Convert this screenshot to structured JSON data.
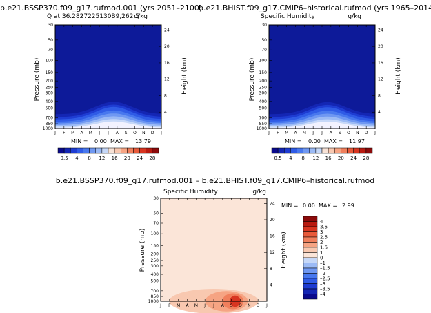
{
  "page_title": "b.e21.BSSP370.f09_g17.rufmod.001 – b.e21.BHIST.f09_g17.CMIP6–historical.rufmod",
  "months": [
    "J",
    "F",
    "M",
    "A",
    "M",
    "J",
    "J",
    "A",
    "S",
    "O",
    "N",
    "D",
    "J"
  ],
  "pressure_ticks": [
    "30",
    "50",
    "70",
    "100",
    "150",
    "200",
    "250",
    "300",
    "400",
    "500",
    "700",
    "850",
    "1000"
  ],
  "panels": [
    {
      "id": "ssp370",
      "top_title": "b.e21.BSSP370.f09_g17.rufmod.001  (yrs 2051–2100)",
      "left_label": "Q  at  36.2827225130B9,262.5",
      "units": "g/kg",
      "min_label": "MIN =",
      "min": "0.00",
      "max_label": "MAX =",
      "max": "13.79",
      "ylabel": "Pressure  (mb)",
      "ylabel_right": "Height  (km)",
      "height_ticks": [
        "24",
        "20",
        "16",
        "12",
        "8",
        "4"
      ]
    },
    {
      "id": "hist",
      "top_title": "b.e21.BHIST.f09_g17.CMIP6–historical.rufmod  (yrs 1965–2014)",
      "left_label": "Specific Humidity",
      "units": "g/kg",
      "min_label": "MIN =",
      "min": "0.00",
      "max_label": "MAX =",
      "max": "11.97",
      "ylabel": "Pressure  (mb)",
      "ylabel_right": "Height  (km)",
      "height_ticks": [
        "24",
        "20",
        "16",
        "12",
        "8",
        "4"
      ]
    },
    {
      "id": "diff",
      "top_title": "b.e21.BSSP370.f09_g17.rufmod.001  –  b.e21.BHIST.f09_g17.CMIP6–historical.rufmod",
      "left_label": "Specific Humidity",
      "units": "g/kg",
      "min_label": "MIN =",
      "min": "0.00",
      "max_label": "MAX =",
      "max": "2.99",
      "ylabel": "Pressure  (mb)",
      "ylabel_right": "Height  (km)",
      "height_ticks": [
        "24",
        "20",
        "16",
        "12",
        "8",
        "4"
      ]
    }
  ],
  "colorbar_abs": {
    "labels": [
      "0.5",
      "4",
      "8",
      "12",
      "16",
      "20",
      "24",
      "28"
    ],
    "colors": [
      "#0a0a8c",
      "#1426b4",
      "#1e3cd2",
      "#2f5be6",
      "#4878ee",
      "#6f98f2",
      "#9bbaf5",
      "#c6d8f8",
      "#f7e2d6",
      "#f8c8b0",
      "#f6a483",
      "#f07f5c",
      "#e85a3a",
      "#d83520",
      "#b81a10",
      "#8c0a0a"
    ]
  },
  "colorbar_diff": {
    "labels": [
      "4",
      "3.5",
      "3",
      "2.5",
      "2",
      "1.5",
      "1",
      "0",
      "–1",
      "–1.5",
      "–2",
      "–2.5",
      "–3",
      "–3.5",
      "–4"
    ],
    "colors": [
      "#8c0a0a",
      "#b81a10",
      "#d83520",
      "#e85a3a",
      "#f07f5c",
      "#f6a483",
      "#f8c8b0",
      "#fbe5d8",
      "#c6d8f8",
      "#9bbaf5",
      "#6f98f2",
      "#4878ee",
      "#2f5be6",
      "#1e3cd2",
      "#1426b4",
      "#0a0a8c"
    ]
  },
  "chart_data": [
    {
      "type": "heatmap",
      "title": "b.e21.BSSP370.f09_g17.rufmod.001  (yrs 2051–2100)",
      "subtitle": "Q  at  36.2827225130B9,262.5",
      "xlabel": "",
      "ylabel": "Pressure  (mb)",
      "ylabel_right": "Height  (km)",
      "units": "g/kg",
      "x": [
        "J",
        "F",
        "M",
        "A",
        "M",
        "J",
        "J",
        "A",
        "S",
        "O",
        "N",
        "D",
        "J"
      ],
      "y_ticks": [
        30,
        50,
        70,
        100,
        150,
        200,
        250,
        300,
        400,
        500,
        700,
        850,
        1000
      ],
      "y_scale": "log",
      "right_axis_ticks": [
        24,
        20,
        16,
        12,
        8,
        4
      ],
      "min": 0.0,
      "max": 13.79,
      "colorbar_levels": [
        0.5,
        4,
        8,
        12,
        16,
        20,
        24,
        28
      ]
    },
    {
      "type": "heatmap",
      "title": "b.e21.BHIST.f09_g17.CMIP6–historical.rufmod  (yrs 1965–2014)",
      "subtitle": "Specific Humidity",
      "xlabel": "",
      "ylabel": "Pressure  (mb)",
      "ylabel_right": "Height  (km)",
      "units": "g/kg",
      "x": [
        "J",
        "F",
        "M",
        "A",
        "M",
        "J",
        "J",
        "A",
        "S",
        "O",
        "N",
        "D",
        "J"
      ],
      "y_ticks": [
        30,
        50,
        70,
        100,
        150,
        200,
        250,
        300,
        400,
        500,
        700,
        850,
        1000
      ],
      "y_scale": "log",
      "right_axis_ticks": [
        24,
        20,
        16,
        12,
        8,
        4
      ],
      "min": 0.0,
      "max": 11.97,
      "colorbar_levels": [
        0.5,
        4,
        8,
        12,
        16,
        20,
        24,
        28
      ]
    },
    {
      "type": "heatmap",
      "title": "b.e21.BSSP370.f09_g17.rufmod.001  –  b.e21.BHIST.f09_g17.CMIP6–historical.rufmod",
      "subtitle": "Specific Humidity",
      "xlabel": "",
      "ylabel": "Pressure  (mb)",
      "ylabel_right": "Height  (km)",
      "units": "g/kg",
      "x": [
        "J",
        "F",
        "M",
        "A",
        "M",
        "J",
        "J",
        "A",
        "S",
        "O",
        "N",
        "D",
        "J"
      ],
      "y_ticks": [
        30,
        50,
        70,
        100,
        150,
        200,
        250,
        300,
        400,
        500,
        700,
        850,
        1000
      ],
      "y_scale": "log",
      "right_axis_ticks": [
        24,
        20,
        16,
        12,
        8,
        4
      ],
      "min": 0.0,
      "max": 2.99,
      "colorbar_levels": [
        4,
        3.5,
        3,
        2.5,
        2,
        1.5,
        1,
        0,
        -1,
        -1.5,
        -2,
        -2.5,
        -3,
        -3.5,
        -4
      ]
    }
  ]
}
